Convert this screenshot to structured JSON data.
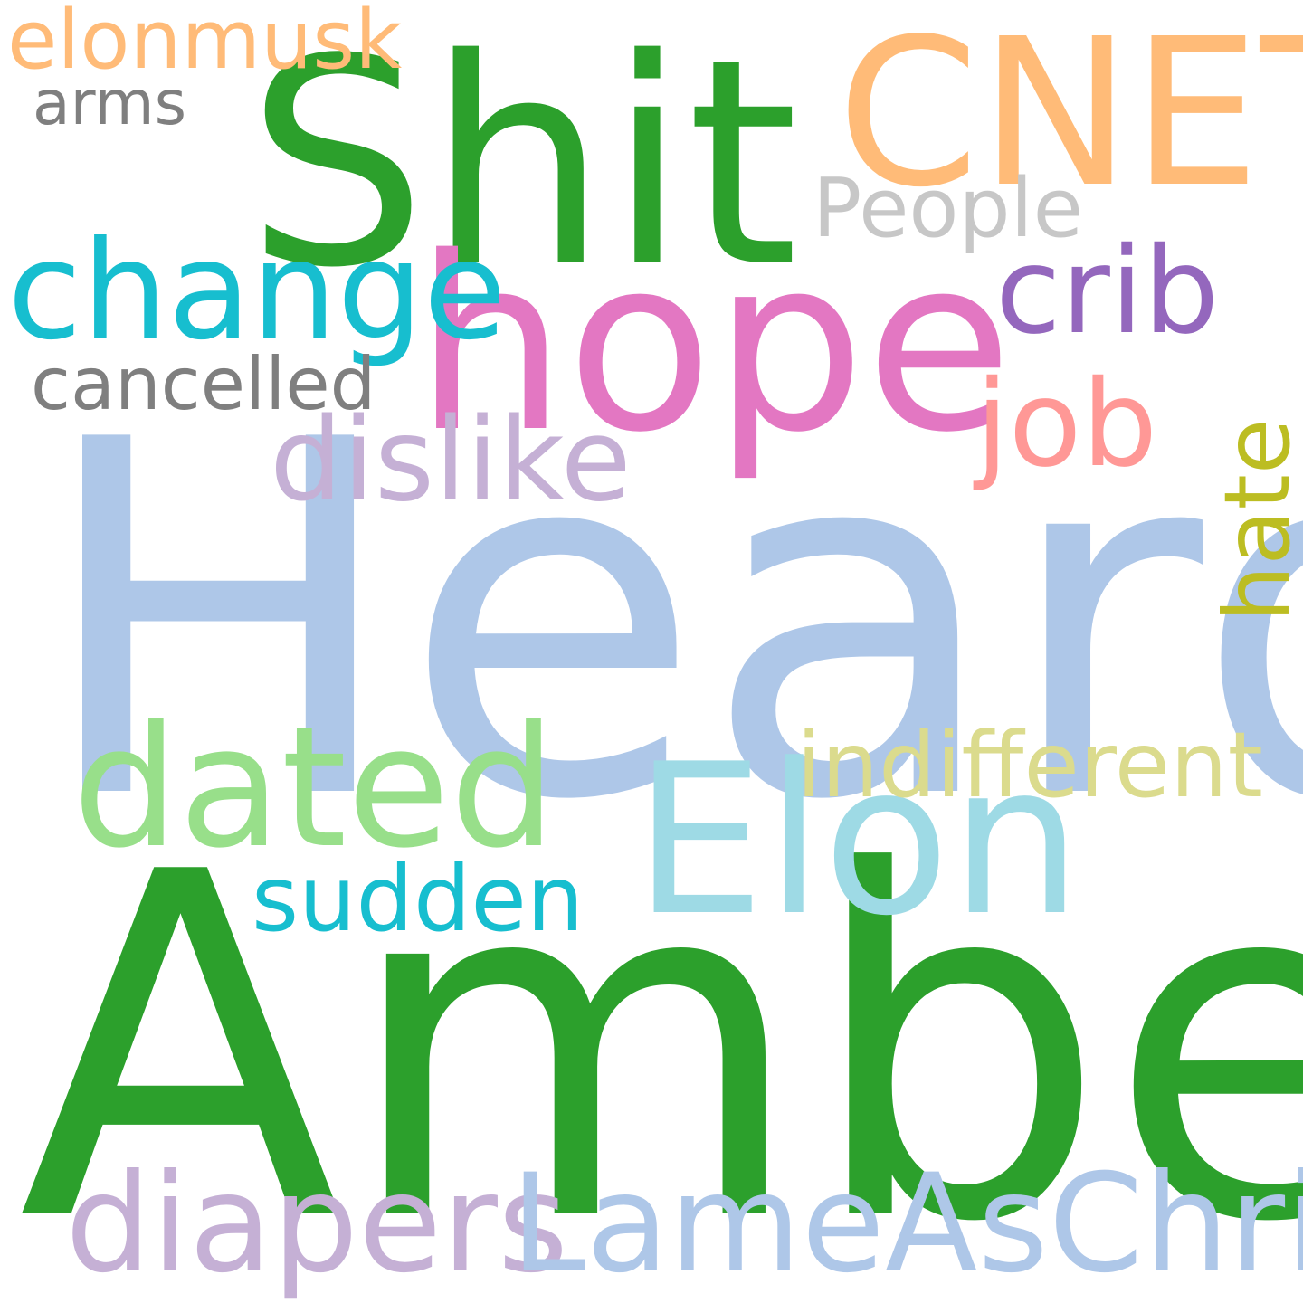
{
  "words": {
    "heard": {
      "text": "Heard",
      "color": "#aec7e8"
    },
    "amber": {
      "text": "Amber",
      "color": "#2ca02c"
    },
    "shit": {
      "text": "Shit",
      "color": "#2ca02c"
    },
    "hope": {
      "text": "hope",
      "color": "#e377c2"
    },
    "cnet": {
      "text": "CNET",
      "color": "#ffbb78"
    },
    "elon": {
      "text": "Elon",
      "color": "#9edae5"
    },
    "dated": {
      "text": "dated",
      "color": "#98df8a"
    },
    "change": {
      "text": "change",
      "color": "#17becf"
    },
    "crib": {
      "text": "crib",
      "color": "#9467bd"
    },
    "job": {
      "text": "job",
      "color": "#ff9896"
    },
    "dislike": {
      "text": "dislike",
      "color": "#c5b0d5"
    },
    "diapers": {
      "text": "diapers",
      "color": "#c5b0d5"
    },
    "lameaschris": {
      "text": "LameAsChris",
      "color": "#aec7e8"
    },
    "indifferent": {
      "text": "indifferent",
      "color": "#dbdb8d"
    },
    "sudden": {
      "text": "sudden",
      "color": "#17becf"
    },
    "people": {
      "text": "People",
      "color": "#c7c7c7"
    },
    "elonmusk": {
      "text": "elonmusk",
      "color": "#ffbb78"
    },
    "arms": {
      "text": "arms",
      "color": "#7f7f7f"
    },
    "cancelled": {
      "text": "cancelled",
      "color": "#7f7f7f"
    },
    "hate": {
      "text": "hate",
      "color": "#bcbd22"
    }
  }
}
